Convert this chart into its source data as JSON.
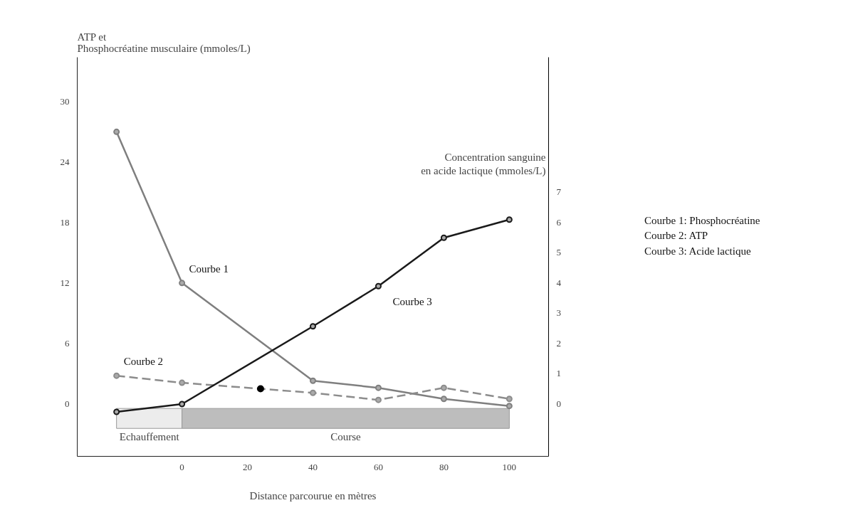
{
  "chart_data": {
    "type": "line",
    "ylabel": "ATP et Phosphocréatine musculaire (mmoles/L)",
    "y2label": "Concentration sanguine en acide lactique (mmoles/L)",
    "xlabel": "Distance parcourue en mètres",
    "x": [
      -20,
      0,
      40,
      60,
      80,
      100
    ],
    "series": [
      {
        "name": "Courbe 1",
        "color": "#7f7f7f",
        "values": [
          27,
          12,
          2.3,
          1.6,
          0.5,
          -0.2
        ],
        "line_style": "solid"
      },
      {
        "name": "Courbe 2",
        "color": "#8c8c8c",
        "values": [
          2.8,
          2.1,
          1.1,
          0.4,
          1.6,
          0.5
        ],
        "line_style": "dashed"
      },
      {
        "name": "Courbe 3",
        "color": "#1a1a1a",
        "values": [
          -0.26,
          0,
          2.57,
          3.9,
          5.5,
          6.1
        ],
        "axis": "y2",
        "line_style": "solid"
      },
      {
        "type": "scatter",
        "color": "#000000",
        "x": [
          24
        ],
        "values": [
          1.5
        ]
      }
    ],
    "xlim": [
      -32,
      112
    ],
    "xticks": [
      0,
      20,
      40,
      60,
      80,
      100
    ],
    "ylim": [
      -5.2,
      34.4
    ],
    "yticks": [
      0,
      6,
      12,
      18,
      24,
      30
    ],
    "y2lim": [
      -1.73,
      11.47
    ],
    "y2ticks": [
      0,
      1,
      2,
      3,
      4,
      5,
      6,
      7
    ],
    "bands": [
      {
        "axis": "x",
        "from": -20,
        "to": 0,
        "label": "Echauffement",
        "color": "#ececec"
      },
      {
        "axis": "x",
        "from": 0,
        "to": 100,
        "label": "Course",
        "color": "#bdbdbd"
      }
    ],
    "annotations": [
      "Courbe 1: Phosphocréatine",
      "Courbe 2: ATP",
      "Courbe 3: Acide lactique"
    ],
    "marker": "circle",
    "grid": false
  }
}
